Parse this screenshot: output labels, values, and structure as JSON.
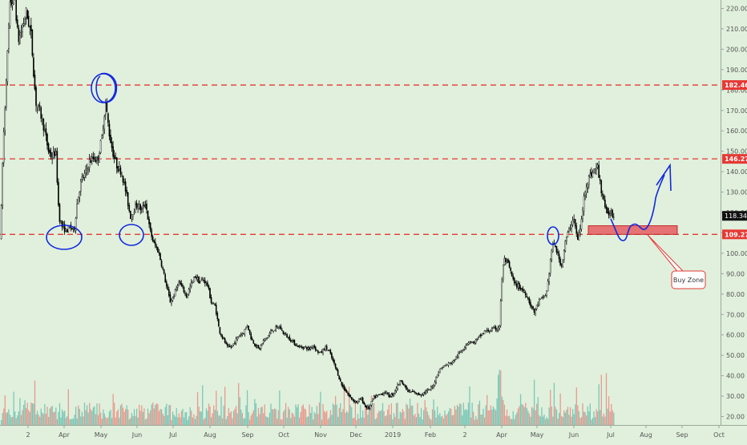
{
  "chart_data": {
    "type": "candlestick",
    "y_axis": {
      "ticks": [
        "220.00",
        "210.00",
        "200.00",
        "190.00",
        "180.00",
        "170.00",
        "160.00",
        "150.00",
        "140.00",
        "130.00",
        "120.00",
        "110.00",
        "100.00",
        "90.00",
        "80.00",
        "70.00",
        "60.00",
        "50.00",
        "40.00",
        "30.00",
        "20.00"
      ],
      "ylim": [
        17,
        225
      ]
    },
    "x_axis": {
      "ticks": [
        "2",
        "Apr",
        "May",
        "Jun",
        "Jul",
        "Aug",
        "Sep",
        "Oct",
        "Nov",
        "Dec",
        "2019",
        "Feb",
        "2",
        "Apr",
        "May",
        "Jun",
        "Jul",
        "Aug",
        "Sep",
        "Oct"
      ]
    },
    "horizontal_levels": [
      {
        "value": 182.46,
        "label": "182.46",
        "color": "#e53935"
      },
      {
        "value": 146.27,
        "label": "146.27",
        "color": "#e53935"
      },
      {
        "value": 109.27,
        "label": "109.27",
        "color": "#e53935"
      }
    ],
    "last_price": {
      "value": 118.34,
      "label": "118.34"
    },
    "annotations": [
      {
        "type": "box",
        "text": "Buy Zone",
        "from_value": 109.27,
        "to_value": 113.5
      },
      {
        "type": "circle",
        "count": 5
      },
      {
        "type": "arrow",
        "text": ""
      }
    ],
    "series_close_points": [
      [
        0,
        108
      ],
      [
        3,
        150
      ],
      [
        8,
        192
      ],
      [
        12,
        222
      ],
      [
        18,
        225
      ],
      [
        22,
        204
      ],
      [
        27,
        210
      ],
      [
        32,
        218
      ],
      [
        38,
        208
      ],
      [
        44,
        174
      ],
      [
        49,
        170
      ],
      [
        55,
        160
      ],
      [
        60,
        150
      ],
      [
        64,
        147
      ],
      [
        69,
        150
      ],
      [
        73,
        118
      ],
      [
        77,
        113
      ],
      [
        82,
        111
      ],
      [
        87,
        113
      ],
      [
        92,
        111
      ],
      [
        96,
        126
      ],
      [
        101,
        136
      ],
      [
        106,
        139
      ],
      [
        111,
        145
      ],
      [
        117,
        147
      ],
      [
        121,
        145
      ],
      [
        127,
        158
      ],
      [
        131,
        174
      ],
      [
        136,
        158
      ],
      [
        141,
        148
      ],
      [
        146,
        142
      ],
      [
        151,
        140
      ],
      [
        157,
        129
      ],
      [
        162,
        118
      ],
      [
        166,
        121
      ],
      [
        171,
        124
      ],
      [
        176,
        121
      ],
      [
        181,
        125
      ],
      [
        186,
        112
      ],
      [
        191,
        105
      ],
      [
        197,
        101
      ],
      [
        202,
        93
      ],
      [
        207,
        84
      ],
      [
        212,
        76
      ],
      [
        217,
        80
      ],
      [
        222,
        86
      ],
      [
        227,
        83
      ],
      [
        232,
        79
      ],
      [
        237,
        84
      ],
      [
        243,
        89
      ],
      [
        248,
        86
      ],
      [
        253,
        87
      ],
      [
        258,
        85
      ],
      [
        263,
        76
      ],
      [
        268,
        74
      ],
      [
        273,
        62
      ],
      [
        278,
        58
      ],
      [
        283,
        54
      ],
      [
        288,
        54
      ],
      [
        293,
        57
      ],
      [
        298,
        60
      ],
      [
        303,
        61
      ],
      [
        308,
        65
      ],
      [
        313,
        58
      ],
      [
        318,
        55
      ],
      [
        323,
        53
      ],
      [
        328,
        57
      ],
      [
        333,
        59
      ],
      [
        338,
        62
      ],
      [
        343,
        63
      ],
      [
        348,
        64
      ],
      [
        353,
        61
      ],
      [
        358,
        59
      ],
      [
        364,
        57
      ],
      [
        369,
        55
      ],
      [
        374,
        54
      ],
      [
        380,
        54
      ],
      [
        385,
        53
      ],
      [
        390,
        55
      ],
      [
        395,
        52
      ],
      [
        400,
        51
      ],
      [
        405,
        54
      ],
      [
        410,
        52
      ],
      [
        415,
        47
      ],
      [
        420,
        42
      ],
      [
        425,
        36
      ],
      [
        430,
        33
      ],
      [
        435,
        30
      ],
      [
        440,
        28
      ],
      [
        445,
        27
      ],
      [
        450,
        29
      ],
      [
        455,
        25
      ],
      [
        460,
        24
      ],
      [
        465,
        29
      ],
      [
        470,
        30
      ],
      [
        475,
        31
      ],
      [
        480,
        32
      ],
      [
        485,
        30
      ],
      [
        490,
        31
      ],
      [
        495,
        35
      ],
      [
        500,
        38
      ],
      [
        505,
        34
      ],
      [
        510,
        32
      ],
      [
        515,
        32
      ],
      [
        520,
        31
      ],
      [
        525,
        31
      ],
      [
        530,
        32
      ],
      [
        535,
        33
      ],
      [
        540,
        35
      ],
      [
        545,
        41
      ],
      [
        550,
        44
      ],
      [
        555,
        45
      ],
      [
        560,
        46
      ],
      [
        565,
        47
      ],
      [
        570,
        50
      ],
      [
        575,
        52
      ],
      [
        580,
        55
      ],
      [
        585,
        57
      ],
      [
        590,
        56
      ],
      [
        595,
        58
      ],
      [
        600,
        60
      ],
      [
        605,
        62
      ],
      [
        610,
        62
      ],
      [
        615,
        63
      ],
      [
        620,
        63
      ],
      [
        623,
        65
      ],
      [
        625,
        85
      ],
      [
        628,
        97
      ],
      [
        631,
        96
      ],
      [
        634,
        94
      ],
      [
        637,
        90
      ],
      [
        641,
        85
      ],
      [
        646,
        84
      ],
      [
        651,
        82
      ],
      [
        656,
        80
      ],
      [
        661,
        75
      ],
      [
        666,
        71
      ],
      [
        671,
        76
      ],
      [
        676,
        78
      ],
      [
        681,
        80
      ],
      [
        685,
        92
      ],
      [
        688,
        103
      ],
      [
        692,
        104
      ],
      [
        696,
        98
      ],
      [
        700,
        94
      ],
      [
        705,
        106
      ],
      [
        710,
        112
      ],
      [
        715,
        118
      ],
      [
        720,
        106
      ],
      [
        725,
        116
      ],
      [
        729,
        131
      ],
      [
        733,
        136
      ],
      [
        737,
        139
      ],
      [
        741,
        141
      ],
      [
        745,
        142
      ],
      [
        749,
        132
      ],
      [
        753,
        126
      ],
      [
        757,
        118
      ],
      [
        761,
        121
      ],
      [
        765,
        118
      ]
    ]
  },
  "annotation_text": {
    "buy_zone": "Buy Zone"
  },
  "colors": {
    "background": "#e0f0dc",
    "up": "#26a69a",
    "down": "#ef5350",
    "level_line": "#e53935",
    "annotation_blue": "#1428e0",
    "candle": "#000000"
  }
}
